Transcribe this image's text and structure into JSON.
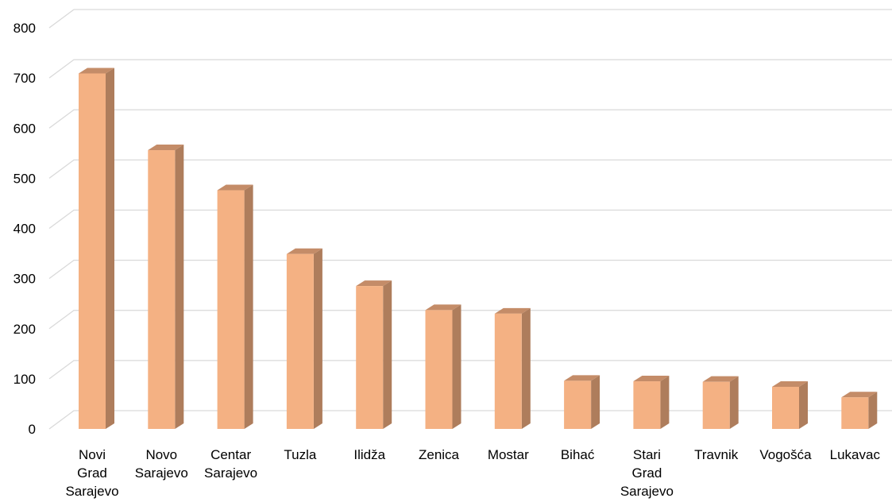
{
  "chart_data": {
    "type": "bar",
    "style": "3d-column",
    "title": "",
    "xlabel": "",
    "ylabel": "",
    "ylim": [
      0,
      800
    ],
    "yticks": [
      0,
      100,
      200,
      300,
      400,
      500,
      600,
      700,
      800
    ],
    "grid": true,
    "legend": "none",
    "categories": [
      [
        "Novi",
        "Grad",
        "Sarajevo"
      ],
      [
        "Novo",
        "Sarajevo"
      ],
      [
        "Centar",
        "Sarajevo"
      ],
      [
        "Tuzla"
      ],
      [
        "Ilidža"
      ],
      [
        "Zenica"
      ],
      [
        "Mostar"
      ],
      [
        "Bihać"
      ],
      [
        "Stari",
        "Grad",
        "Sarajevo"
      ],
      [
        "Travnik"
      ],
      [
        "Vogošća"
      ],
      [
        "Lukavac"
      ]
    ],
    "values": [
      709,
      556,
      476,
      349,
      285,
      237,
      230,
      96,
      95,
      94,
      84,
      63
    ],
    "colors": {
      "bar_front": "#F4B183",
      "bar_side": "#AE7D5C",
      "bar_top": "#C48C68",
      "grid": "#D9D9D9",
      "text": "#000000"
    }
  }
}
